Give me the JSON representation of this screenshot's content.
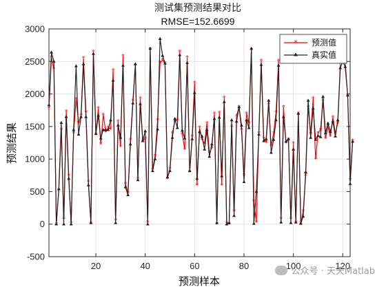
{
  "chart_data": {
    "type": "line",
    "title": "测试集预测结果对比",
    "subtitle": "RMSE=152.6699",
    "xlabel": "预测样本",
    "ylabel": "预测结果",
    "xlim": [
      1,
      123
    ],
    "ylim": [
      -500,
      3000
    ],
    "xticks": [
      20,
      40,
      60,
      80,
      100,
      120
    ],
    "yticks": [
      -500,
      0,
      500,
      1000,
      1500,
      2000,
      2500,
      3000
    ],
    "grid": true,
    "legend_position": "top-right",
    "series": [
      {
        "name": "预测值",
        "color": "#ff0000",
        "marker": "star",
        "values": [
          1780,
          2560,
          2380,
          0,
          520,
          1450,
          80,
          1730,
          750,
          20,
          1400,
          1920,
          1550,
          1680,
          2550,
          1720,
          650,
          20,
          2650,
          1380,
          1780,
          1230,
          1680,
          1420,
          1480,
          1460,
          2360,
          60,
          1580,
          1190,
          2580,
          620,
          480,
          1300,
          1900,
          2450,
          700,
          1930,
          1280,
          1320,
          30,
          2690,
          840,
          1050,
          1600,
          2480,
          2520,
          2470,
          700,
          850,
          1400,
          1580,
          1600,
          2650,
          1380,
          1150,
          2560,
          800,
          1350,
          2170,
          600,
          1480,
          1300,
          1240,
          1550,
          1100,
          1170,
          1700,
          0,
          1710,
          600,
          1940,
          20,
          0,
          1500,
          200,
          1660,
          1800,
          1450,
          750,
          1700,
          1550,
          2680,
          350,
          30,
          1400,
          2510,
          1320,
          1260,
          1850,
          1200,
          1400,
          1720,
          2510,
          80,
          1800,
          1250,
          1300,
          80,
          1240,
          30,
          1700,
          10,
          200,
          750,
          1800,
          1390,
          1930,
          1000,
          1400,
          1450,
          1900,
          1320,
          1500,
          1350,
          1640,
          1400,
          1550,
          2480,
          2500,
          2490,
          1980,
          680,
          1280
        ]
      },
      {
        "name": "真实值",
        "color": "#222222",
        "marker": "triangle",
        "values": [
          1830,
          2640,
          2500,
          0,
          540,
          1560,
          0,
          1650,
          700,
          0,
          1450,
          2430,
          1380,
          1650,
          2460,
          1650,
          600,
          20,
          2620,
          1390,
          1670,
          1320,
          1450,
          1450,
          1450,
          1600,
          2210,
          20,
          1520,
          1330,
          2440,
          570,
          450,
          1230,
          1860,
          2460,
          680,
          1850,
          1280,
          1430,
          0,
          2700,
          820,
          1000,
          1460,
          2850,
          2590,
          2470,
          720,
          820,
          1330,
          1620,
          1480,
          2600,
          1440,
          1320,
          2480,
          820,
          1310,
          2020,
          700,
          1420,
          1350,
          1150,
          1450,
          1040,
          1230,
          1620,
          20,
          1640,
          740,
          1880,
          0,
          20,
          1600,
          130,
          1580,
          1800,
          1520,
          650,
          1600,
          1480,
          2700,
          10,
          500,
          1380,
          2450,
          1280,
          1310,
          1900,
          1100,
          1300,
          1600,
          2440,
          30,
          1650,
          1270,
          1310,
          20,
          1150,
          30,
          1700,
          10,
          120,
          800,
          1900,
          1330,
          1780,
          1300,
          1360,
          1340,
          1960,
          1400,
          1550,
          1420,
          1580,
          1350,
          1600,
          2400,
          2500,
          2420,
          1980,
          620,
          1270
        ]
      }
    ]
  },
  "watermark": {
    "text": "公众号 · 天天Matlab"
  }
}
